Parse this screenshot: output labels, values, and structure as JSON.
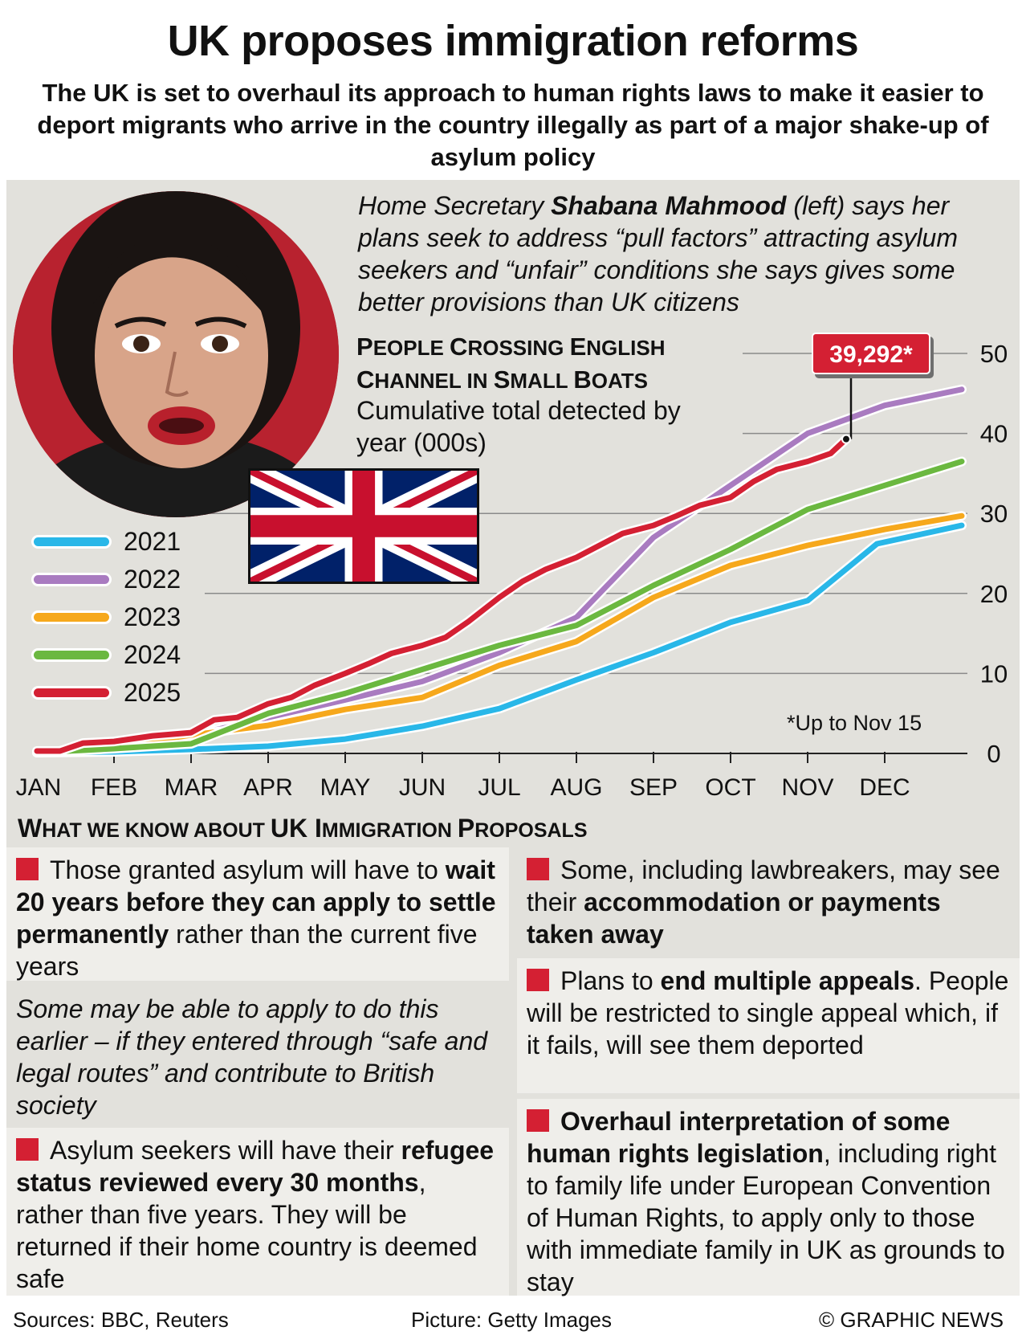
{
  "header": {
    "title": "UK proposes immigration reforms",
    "subtitle": "The UK is set to overhaul its approach to human rights laws to make it easier to deport migrants who arrive in the country illegally as part of a major shake-up of asylum policy"
  },
  "quote": {
    "pre": "Home Secretary ",
    "name": "Shabana Mahmood",
    "post": " (left) says her plans seek to address “pull factors” attracting asylum seekers and “unfair” conditions she says gives some better provisions than UK citizens"
  },
  "chart_data": {
    "type": "line",
    "title_line1_cap": "P",
    "title_line1_rest": "EOPLE ",
    "title_line1b_cap": "C",
    "title_line1b_rest": "ROSSING ",
    "title_line1c_cap": "E",
    "title_line1c_rest": "NGLISH",
    "title_line2_cap": "C",
    "title_line2_rest": "HANNEL IN ",
    "title_line2b_cap": "S",
    "title_line2b_rest": "MALL ",
    "title_line2c_cap": "B",
    "title_line2c_rest": "OATS",
    "subtitle": "Cumulative total detected by year (000s)",
    "months": [
      "JAN",
      "FEB",
      "MAR",
      "APR",
      "MAY",
      "JUN",
      "JUL",
      "AUG",
      "SEP",
      "OCT",
      "NOV",
      "DEC"
    ],
    "y_ticks": [
      0,
      10,
      20,
      30,
      40,
      50
    ],
    "ylim": [
      0,
      50
    ],
    "xlim": [
      0,
      12
    ],
    "series": [
      {
        "name": "2021",
        "color": "#29b7e8",
        "x": [
          0,
          1,
          2,
          3,
          4,
          5,
          6,
          7,
          8,
          9,
          10,
          10.9,
          12
        ],
        "y": [
          0.1,
          0.2,
          0.5,
          0.9,
          1.8,
          3.4,
          5.6,
          9.2,
          12.6,
          16.4,
          19.1,
          26.2,
          28.5
        ]
      },
      {
        "name": "2022",
        "color": "#a97bc0",
        "x": [
          0,
          1,
          2,
          3,
          4,
          5,
          6,
          7,
          8,
          9,
          10,
          11,
          12
        ],
        "y": [
          0.1,
          0.8,
          2.2,
          4.5,
          6.7,
          9.0,
          12.6,
          17.0,
          27.0,
          33.5,
          40.0,
          43.5,
          45.5
        ]
      },
      {
        "name": "2023",
        "color": "#f6a81c",
        "x": [
          0,
          1,
          2,
          3,
          4,
          5,
          6,
          7,
          8,
          9,
          10,
          11,
          12
        ],
        "y": [
          0.1,
          0.8,
          2.3,
          3.5,
          5.5,
          7.0,
          11.0,
          14.0,
          19.5,
          23.5,
          26.0,
          28.0,
          29.7
        ]
      },
      {
        "name": "2024",
        "color": "#6bb840",
        "x": [
          0,
          1,
          2,
          3,
          4,
          5,
          6,
          7,
          8,
          9,
          10,
          11,
          12
        ],
        "y": [
          0.1,
          0.6,
          1.2,
          5.0,
          7.5,
          10.5,
          13.5,
          16.0,
          21.0,
          25.5,
          30.5,
          33.5,
          36.5
        ]
      },
      {
        "name": "2025",
        "color": "#d42033",
        "x": [
          0,
          0.3,
          0.6,
          1,
          1.5,
          2,
          2.3,
          2.6,
          3,
          3.3,
          3.6,
          4,
          4.3,
          4.6,
          5,
          5.3,
          5.6,
          6,
          6.3,
          6.6,
          7,
          7.3,
          7.6,
          8,
          8.3,
          8.6,
          9,
          9.3,
          9.6,
          10,
          10.3,
          10.5
        ],
        "y": [
          0.3,
          0.3,
          1.3,
          1.5,
          2.2,
          2.6,
          4.2,
          4.5,
          6.2,
          7.0,
          8.5,
          10.0,
          11.2,
          12.5,
          13.5,
          14.5,
          16.5,
          19.5,
          21.5,
          23.0,
          24.5,
          26.0,
          27.5,
          28.5,
          29.7,
          31.0,
          32.0,
          34.0,
          35.5,
          36.5,
          37.5,
          39.3
        ]
      }
    ],
    "legend": [
      "2021",
      "2022",
      "2023",
      "2024",
      "2025"
    ],
    "annotation": "39,292*",
    "annotation_value": 39.292,
    "note": "*Up to Nov 15"
  },
  "know": {
    "title_cap1": "W",
    "title_rest1": "HAT WE KNOW ABOUT ",
    "title_uk": "UK ",
    "title_cap2": "I",
    "title_rest2": "MMIGRATION ",
    "title_cap3": "P",
    "title_rest3": "ROPOSALS",
    "items": {
      "a": {
        "t1": "Those granted asylum will have to ",
        "b1": "wait 20 years before they can apply to settle permanently",
        "t2": " rather than the current five years"
      },
      "a_note": "Some may be able to apply to do this earlier – if they entered through “safe and legal routes” and contribute to British society",
      "b": {
        "t1": "Asylum seekers will have their ",
        "b1": "refugee status reviewed every 30 months",
        "t2": ", rather than five years. They will be returned if their home country is deemed safe"
      },
      "c": {
        "t1": "Some, including lawbreakers, may see their ",
        "b1": "accommodation or payments taken away",
        "t2": ""
      },
      "d": {
        "t1": "Plans to ",
        "b1": "end multiple appeals",
        "t2": ". People will be restricted to single appeal which, if it fails, will see them deported"
      },
      "e": {
        "t1": "",
        "b1": "Overhaul interpretation of some human rights legislation",
        "t2": ", including right to family life under European Convention of Human Rights, to apply only to those with immediate family in UK as grounds to stay"
      }
    }
  },
  "footer": {
    "sources": "Sources: BBC, Reuters",
    "picture": "Picture: Getty Images",
    "credit": "© GRAPHIC NEWS"
  }
}
